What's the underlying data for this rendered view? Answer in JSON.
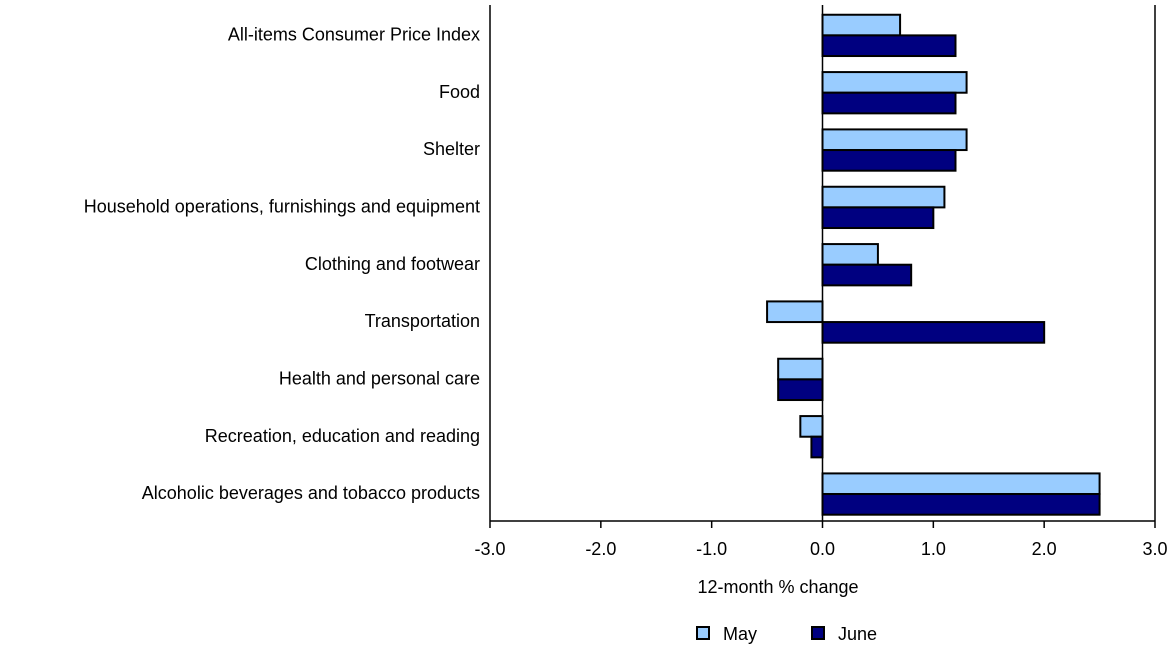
{
  "chart_data": {
    "type": "bar",
    "orientation": "horizontal",
    "categories": [
      "All-items Consumer Price Index",
      "Food",
      "Shelter",
      "Household operations, furnishings and equipment",
      "Clothing and footwear",
      "Transportation",
      "Health and personal care",
      "Recreation, education and reading",
      "Alcoholic beverages and tobacco products"
    ],
    "series": [
      {
        "name": "May",
        "color": "#99ccff",
        "values": [
          0.7,
          1.3,
          1.3,
          1.1,
          0.5,
          -0.5,
          -0.4,
          -0.2,
          2.5
        ]
      },
      {
        "name": "June",
        "color": "#000080",
        "values": [
          1.2,
          1.2,
          1.2,
          1.0,
          0.8,
          2.0,
          -0.4,
          -0.1,
          2.5
        ]
      }
    ],
    "x_label": "12-month % change",
    "xlim": [
      -3,
      3
    ],
    "xticks": [
      {
        "value": -3,
        "label": "-3.0"
      },
      {
        "value": -2,
        "label": "-2.0"
      },
      {
        "value": -1,
        "label": "-1.0"
      },
      {
        "value": 0,
        "label": "0.0"
      },
      {
        "value": 1,
        "label": "1.0"
      },
      {
        "value": 2,
        "label": "2.0"
      },
      {
        "value": 3,
        "label": "3.0"
      }
    ],
    "legend": "bottom"
  }
}
